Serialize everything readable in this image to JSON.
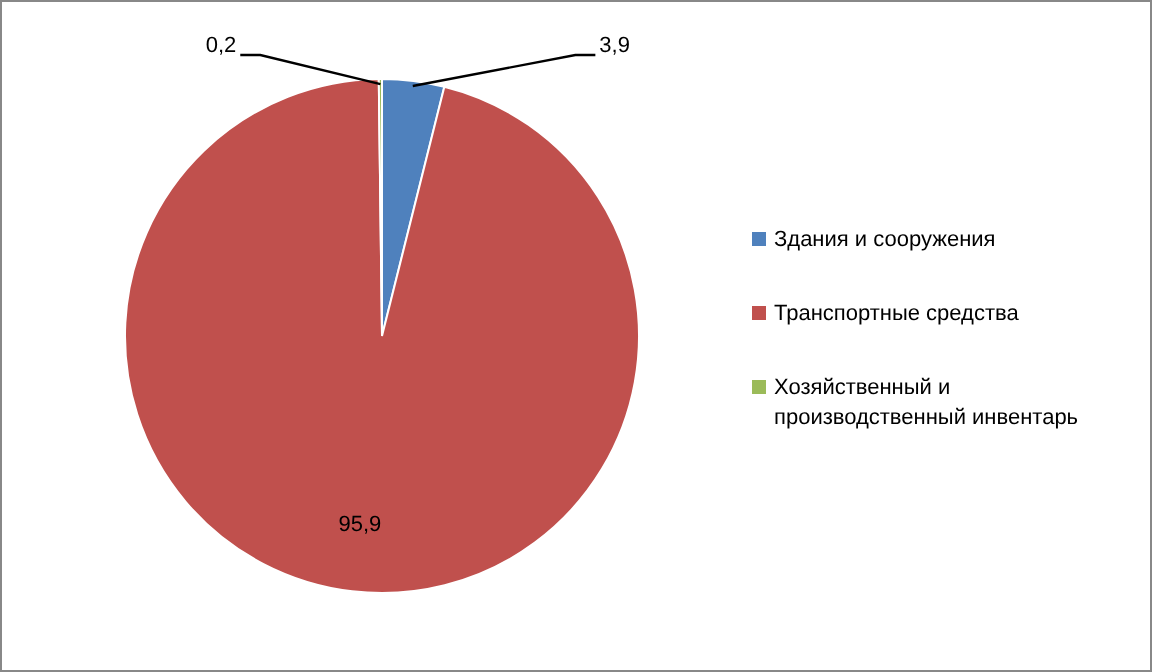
{
  "chart_data": {
    "type": "pie",
    "categories": [
      "Здания и сооружения",
      "Транспортные средства",
      "Хозяйственный и производственный инвентарь"
    ],
    "values": [
      3.9,
      95.9,
      0.2
    ],
    "colors": [
      "#4f81bd",
      "#c0504d",
      "#9bbb59"
    ],
    "value_labels": [
      "3,9",
      "95,9",
      "0,2"
    ],
    "legend": "right"
  }
}
